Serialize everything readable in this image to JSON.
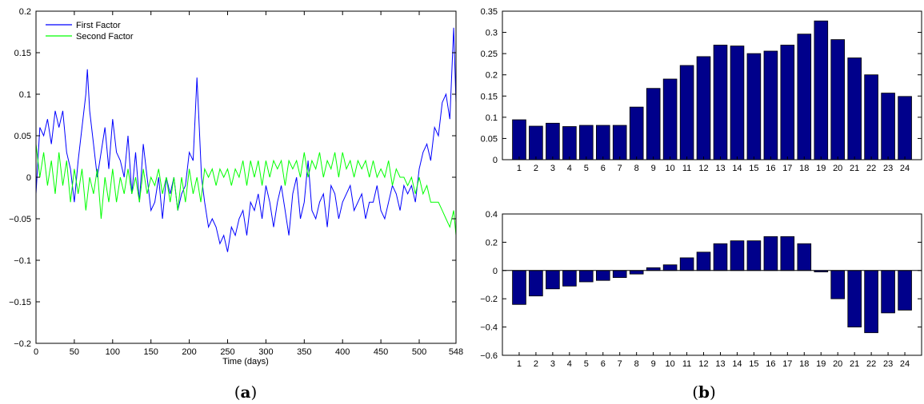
{
  "colors": {
    "first_factor": "#0000ff",
    "second_factor": "#00ff00",
    "bar": "#00008b",
    "axis": "#000000"
  },
  "captions": {
    "a_open": "(",
    "a_letter": "a",
    "a_close": ")",
    "b_open": "(",
    "b_letter": "b",
    "b_close": ")"
  },
  "chart_data": [
    {
      "id": "panel-a",
      "type": "line",
      "xlabel": "Time (days)",
      "ylabel": "",
      "xlim": [
        0,
        548
      ],
      "ylim": [
        -0.2,
        0.2
      ],
      "xticks": [
        0,
        50,
        100,
        150,
        200,
        250,
        300,
        350,
        400,
        450,
        500,
        548
      ],
      "yticks": [
        -0.2,
        -0.15,
        -0.1,
        -0.05,
        0,
        0.05,
        0.1,
        0.15,
        0.2
      ],
      "ytick_labels": [
        "−0.2",
        "−0.15",
        "−0.1",
        "−0.05",
        "0",
        "0.05",
        "0.1",
        "0.15",
        "0.2"
      ],
      "grid": false,
      "legend_position": "top-left",
      "series": [
        {
          "name": "First Factor",
          "color": "#0000ff",
          "x": [
            0,
            5,
            10,
            15,
            20,
            25,
            30,
            35,
            40,
            45,
            50,
            55,
            60,
            65,
            67,
            70,
            75,
            80,
            85,
            90,
            95,
            100,
            105,
            110,
            115,
            120,
            125,
            130,
            135,
            140,
            145,
            150,
            155,
            160,
            165,
            170,
            175,
            180,
            185,
            190,
            195,
            200,
            205,
            210,
            213,
            216,
            220,
            225,
            230,
            235,
            240,
            245,
            250,
            255,
            260,
            265,
            270,
            275,
            280,
            285,
            290,
            295,
            300,
            305,
            310,
            315,
            320,
            325,
            330,
            335,
            340,
            345,
            350,
            355,
            360,
            365,
            370,
            375,
            380,
            385,
            390,
            395,
            400,
            405,
            410,
            415,
            420,
            425,
            430,
            435,
            440,
            445,
            450,
            455,
            460,
            465,
            470,
            475,
            480,
            485,
            490,
            495,
            500,
            505,
            510,
            515,
            520,
            525,
            530,
            535,
            540,
            545,
            548
          ],
          "values": [
            -0.02,
            0.06,
            0.05,
            0.07,
            0.04,
            0.08,
            0.06,
            0.08,
            0.03,
            0.01,
            -0.03,
            0.02,
            0.06,
            0.1,
            0.13,
            0.08,
            0.04,
            0.0,
            0.03,
            0.06,
            0.01,
            0.07,
            0.03,
            0.02,
            0.0,
            0.05,
            -0.02,
            0.03,
            -0.03,
            0.04,
            0.0,
            -0.04,
            -0.03,
            0.0,
            -0.05,
            0.0,
            -0.02,
            0.0,
            -0.04,
            -0.02,
            -0.01,
            0.03,
            0.02,
            0.12,
            0.06,
            0.0,
            -0.03,
            -0.06,
            -0.05,
            -0.06,
            -0.08,
            -0.07,
            -0.09,
            -0.06,
            -0.07,
            -0.05,
            -0.04,
            -0.07,
            -0.03,
            -0.04,
            -0.02,
            -0.05,
            -0.01,
            -0.03,
            -0.06,
            -0.03,
            -0.01,
            -0.04,
            -0.07,
            -0.02,
            0.0,
            -0.05,
            -0.03,
            0.02,
            -0.04,
            -0.05,
            -0.03,
            -0.02,
            -0.06,
            -0.01,
            -0.02,
            -0.05,
            -0.03,
            -0.02,
            -0.01,
            -0.04,
            -0.03,
            -0.02,
            -0.05,
            -0.03,
            -0.03,
            -0.01,
            -0.04,
            -0.05,
            -0.03,
            -0.01,
            -0.02,
            -0.04,
            -0.01,
            -0.02,
            -0.01,
            -0.03,
            0.01,
            0.03,
            0.04,
            0.02,
            0.06,
            0.05,
            0.09,
            0.1,
            0.07,
            0.18,
            0.09
          ]
        },
        {
          "name": "Second Factor",
          "color": "#00ff00",
          "x": [
            0,
            5,
            10,
            15,
            20,
            25,
            30,
            35,
            40,
            45,
            50,
            55,
            60,
            65,
            70,
            75,
            80,
            85,
            90,
            95,
            100,
            105,
            110,
            115,
            120,
            125,
            130,
            135,
            140,
            145,
            150,
            155,
            160,
            165,
            170,
            175,
            180,
            185,
            190,
            195,
            200,
            205,
            210,
            215,
            220,
            225,
            230,
            235,
            240,
            245,
            250,
            255,
            260,
            265,
            270,
            275,
            280,
            285,
            290,
            295,
            300,
            305,
            310,
            315,
            320,
            325,
            330,
            335,
            340,
            345,
            350,
            355,
            360,
            365,
            370,
            375,
            380,
            385,
            390,
            395,
            400,
            405,
            410,
            415,
            420,
            425,
            430,
            435,
            440,
            445,
            450,
            455,
            460,
            465,
            470,
            475,
            480,
            485,
            490,
            495,
            500,
            505,
            510,
            515,
            520,
            525,
            530,
            535,
            540,
            545,
            548
          ],
          "values": [
            0.04,
            0.0,
            0.03,
            -0.01,
            0.02,
            -0.02,
            0.03,
            -0.01,
            0.02,
            -0.03,
            0.01,
            -0.02,
            0.01,
            -0.04,
            0.0,
            -0.02,
            0.01,
            -0.05,
            0.0,
            -0.03,
            0.01,
            -0.03,
            0.0,
            -0.02,
            0.01,
            -0.02,
            0.0,
            -0.03,
            0.01,
            -0.02,
            0.0,
            -0.01,
            0.01,
            -0.02,
            0.0,
            -0.03,
            0.0,
            -0.04,
            0.0,
            -0.03,
            0.01,
            -0.02,
            0.0,
            -0.03,
            0.01,
            0.0,
            0.01,
            -0.01,
            0.01,
            0.0,
            0.01,
            -0.01,
            0.01,
            0.0,
            0.02,
            -0.01,
            0.02,
            0.0,
            0.02,
            -0.01,
            0.02,
            0.0,
            0.02,
            0.01,
            0.02,
            -0.01,
            0.02,
            0.01,
            0.02,
            0.0,
            0.03,
            0.0,
            0.02,
            0.01,
            0.03,
            0.0,
            0.02,
            0.01,
            0.03,
            0.0,
            0.03,
            0.01,
            0.02,
            0.0,
            0.02,
            0.01,
            0.02,
            0.0,
            0.02,
            0.0,
            0.01,
            0.0,
            0.02,
            -0.01,
            0.01,
            0.0,
            0.0,
            -0.01,
            0.0,
            -0.02,
            0.0,
            -0.02,
            -0.01,
            -0.03,
            -0.03,
            -0.03,
            -0.04,
            -0.05,
            -0.06,
            -0.04,
            -0.07
          ]
        }
      ]
    },
    {
      "id": "panel-b-top",
      "type": "bar",
      "categories": [
        "1",
        "2",
        "3",
        "4",
        "5",
        "6",
        "7",
        "8",
        "9",
        "10",
        "11",
        "12",
        "13",
        "14",
        "15",
        "16",
        "17",
        "18",
        "19",
        "20",
        "21",
        "22",
        "23",
        "24"
      ],
      "values": [
        0.094,
        0.079,
        0.086,
        0.078,
        0.081,
        0.081,
        0.081,
        0.124,
        0.168,
        0.19,
        0.222,
        0.243,
        0.27,
        0.268,
        0.25,
        0.256,
        0.27,
        0.296,
        0.327,
        0.283,
        0.24,
        0.2,
        0.157,
        0.149
      ],
      "ylim": [
        0,
        0.35
      ],
      "yticks": [
        0,
        0.05,
        0.1,
        0.15,
        0.2,
        0.25,
        0.3,
        0.35
      ],
      "ytick_labels": [
        "0",
        "0.05",
        "0.1",
        "0.15",
        "0.2",
        "0.25",
        "0.3",
        "0.35"
      ],
      "xlabel": "",
      "ylabel": "",
      "grid": false
    },
    {
      "id": "panel-b-bottom",
      "type": "bar",
      "categories": [
        "1",
        "2",
        "3",
        "4",
        "5",
        "6",
        "7",
        "8",
        "9",
        "10",
        "11",
        "12",
        "13",
        "14",
        "15",
        "16",
        "17",
        "18",
        "19",
        "20",
        "21",
        "22",
        "23",
        "24"
      ],
      "values": [
        -0.24,
        -0.18,
        -0.13,
        -0.11,
        -0.08,
        -0.07,
        -0.05,
        -0.025,
        0.02,
        0.04,
        0.09,
        0.13,
        0.19,
        0.21,
        0.21,
        0.24,
        0.24,
        0.19,
        -0.01,
        -0.2,
        -0.4,
        -0.44,
        -0.3,
        -0.28
      ],
      "ylim": [
        -0.6,
        0.4
      ],
      "yticks": [
        -0.6,
        -0.4,
        -0.2,
        0,
        0.2,
        0.4
      ],
      "ytick_labels": [
        "−0.6",
        "−0.4",
        "−0.2",
        "0",
        "0.2",
        "0.4"
      ],
      "xlabel": "",
      "ylabel": "",
      "grid": false
    }
  ]
}
